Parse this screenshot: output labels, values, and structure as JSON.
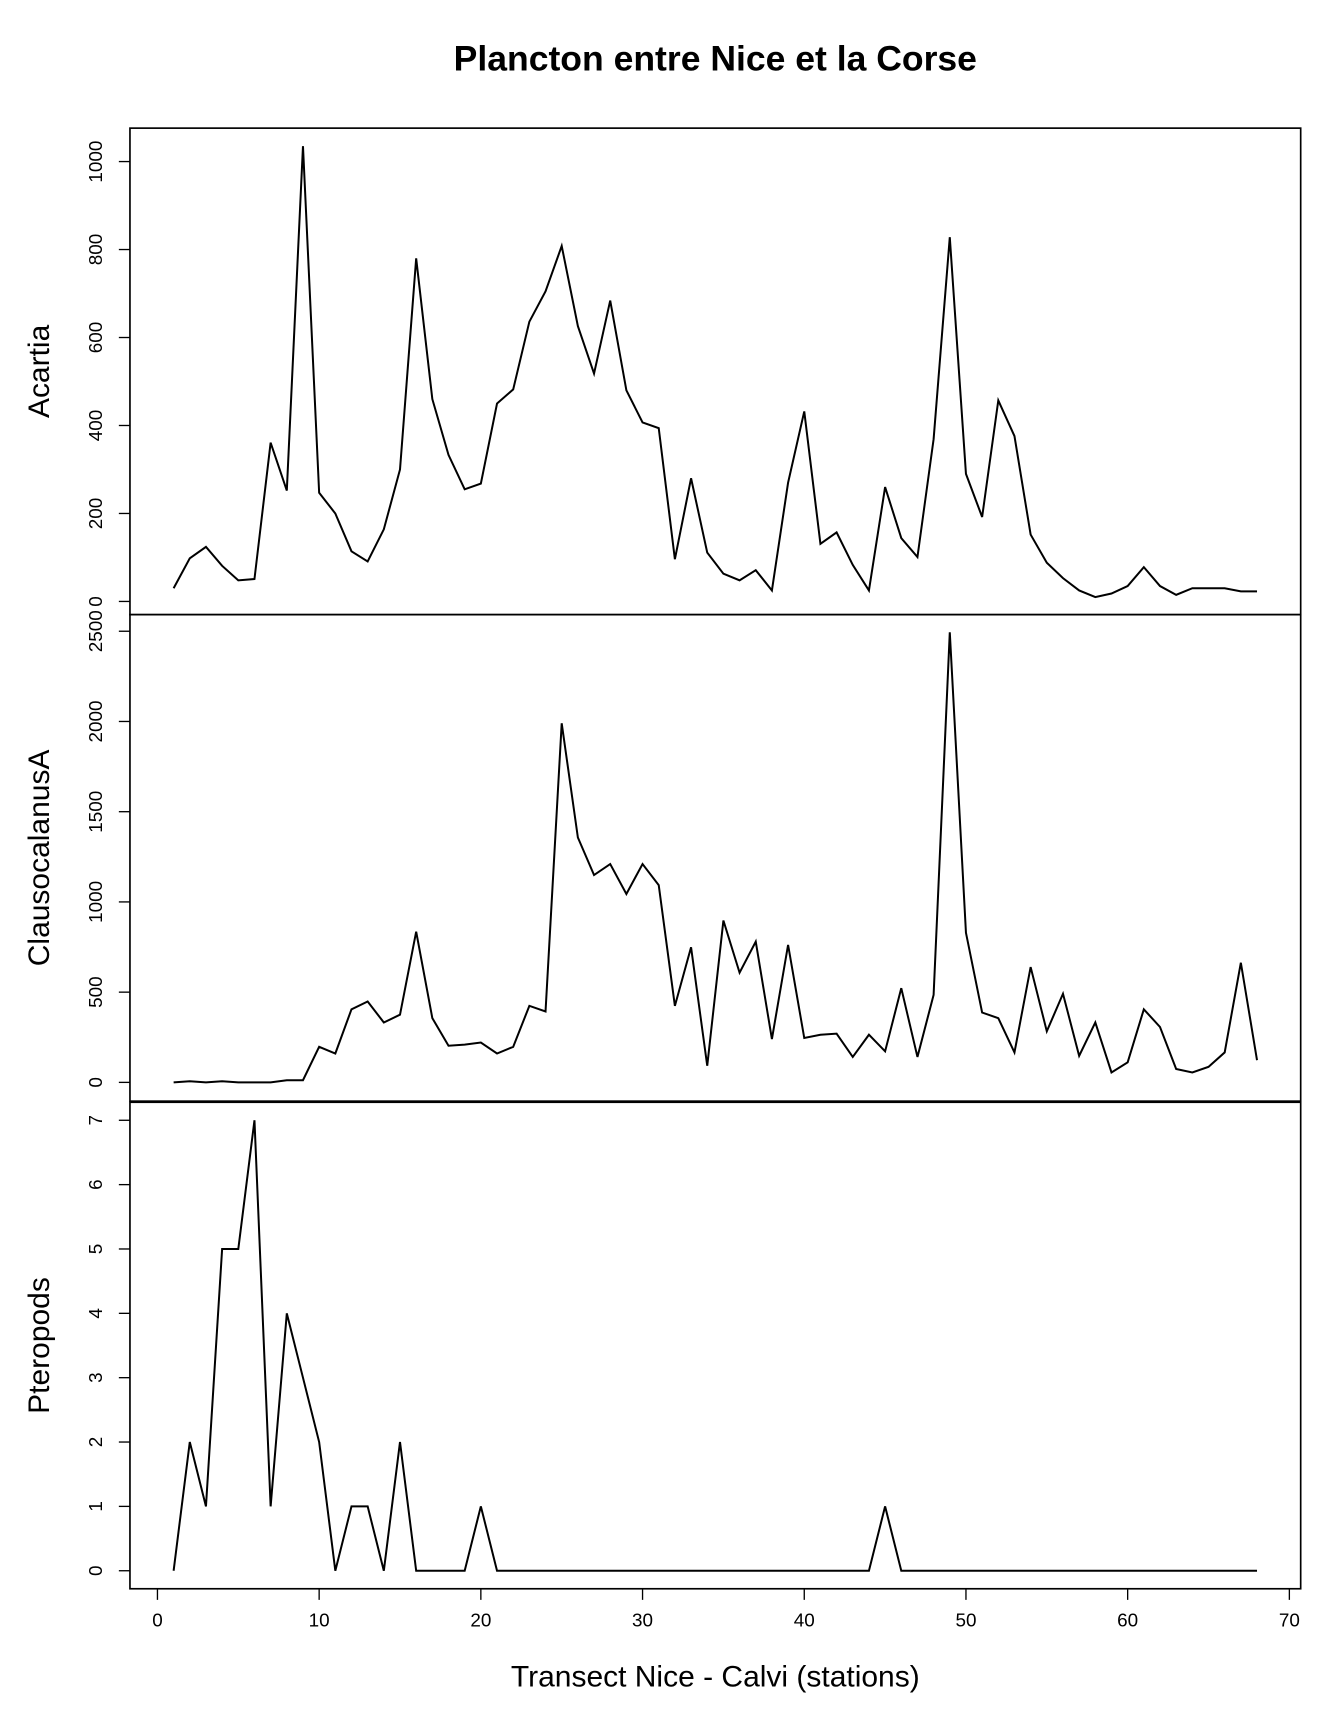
{
  "title": "Plancton entre Nice et la Corse",
  "xlabel": "Transect Nice - Calvi (stations)",
  "xlim": [
    -1.7,
    70.7
  ],
  "xticks": [
    0,
    10,
    20,
    30,
    40,
    50,
    60,
    70
  ],
  "x": [
    1,
    2,
    3,
    4,
    5,
    6,
    7,
    8,
    9,
    10,
    11,
    12,
    13,
    14,
    15,
    16,
    17,
    18,
    19,
    20,
    21,
    22,
    23,
    24,
    25,
    26,
    27,
    28,
    29,
    30,
    31,
    32,
    33,
    34,
    35,
    36,
    37,
    38,
    39,
    40,
    41,
    42,
    43,
    44,
    45,
    46,
    47,
    48,
    49,
    50,
    51,
    52,
    53,
    54,
    55,
    56,
    57,
    58,
    59,
    60,
    61,
    62,
    63,
    64,
    65,
    66,
    67,
    68
  ],
  "chart_data": [
    {
      "type": "line",
      "ylabel": "Acartia",
      "color": "#000000",
      "ylim": [
        -30,
        1076
      ],
      "yticks": [
        0,
        200,
        400,
        600,
        800,
        1000
      ],
      "values": [
        30,
        98,
        124,
        81,
        48,
        51,
        361,
        252,
        1035,
        247,
        200,
        114,
        91,
        164,
        300,
        780,
        460,
        333,
        255,
        268,
        450,
        482,
        636,
        705,
        808,
        626,
        518,
        684,
        480,
        407,
        394,
        96,
        280,
        111,
        63,
        48,
        71,
        25,
        270,
        432,
        131,
        157,
        83,
        25,
        260,
        144,
        101,
        369,
        828,
        290,
        192,
        457,
        376,
        152,
        88,
        53,
        25,
        10,
        18,
        35,
        78,
        35,
        15,
        30,
        30,
        30,
        23,
        23
      ]
    },
    {
      "type": "line",
      "ylabel": "ClausocalanusA",
      "color": "#000000",
      "ylim": [
        -104,
        2592
      ],
      "yticks": [
        0,
        500,
        1000,
        1500,
        2000,
        2500
      ],
      "values": [
        0,
        6,
        0,
        6,
        0,
        0,
        0,
        12,
        12,
        197,
        160,
        405,
        448,
        332,
        375,
        835,
        356,
        203,
        209,
        221,
        160,
        197,
        424,
        393,
        1990,
        1357,
        1149,
        1210,
        1044,
        1210,
        1093,
        424,
        749,
        92,
        897,
        608,
        780,
        240,
        762,
        246,
        264,
        270,
        141,
        264,
        172,
        522,
        141,
        485,
        2494,
        829,
        387,
        356,
        166,
        639,
        283,
        491,
        147,
        332,
        55,
        111,
        405,
        307,
        74,
        55,
        86,
        166,
        663,
        123
      ]
    },
    {
      "type": "line",
      "ylabel": "Pteropods",
      "color": "#000000",
      "ylim": [
        -0.28,
        7.28
      ],
      "yticks": [
        0,
        1,
        2,
        3,
        4,
        5,
        6,
        7
      ],
      "values": [
        0,
        2,
        1,
        5,
        5,
        7,
        1,
        4,
        3,
        2,
        0,
        1,
        1,
        0,
        2,
        0,
        0,
        0,
        0,
        1,
        0,
        0,
        0,
        0,
        0,
        0,
        0,
        0,
        0,
        0,
        0,
        0,
        0,
        0,
        0,
        0,
        0,
        0,
        0,
        0,
        0,
        0,
        0,
        0,
        1,
        0,
        0,
        0,
        0,
        0,
        0,
        0,
        0,
        0,
        0,
        0,
        0,
        0,
        0,
        0,
        0,
        0,
        0,
        0,
        0,
        0,
        0,
        0
      ]
    }
  ]
}
